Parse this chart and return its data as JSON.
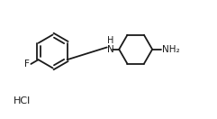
{
  "bg_color": "#ffffff",
  "line_color": "#1a1a1a",
  "line_width": 1.3,
  "font_size": 7.5,
  "figsize": [
    2.41,
    1.32
  ],
  "dpi": 100,
  "xlim": [
    0,
    10.5
  ],
  "ylim": [
    0,
    5.8
  ]
}
